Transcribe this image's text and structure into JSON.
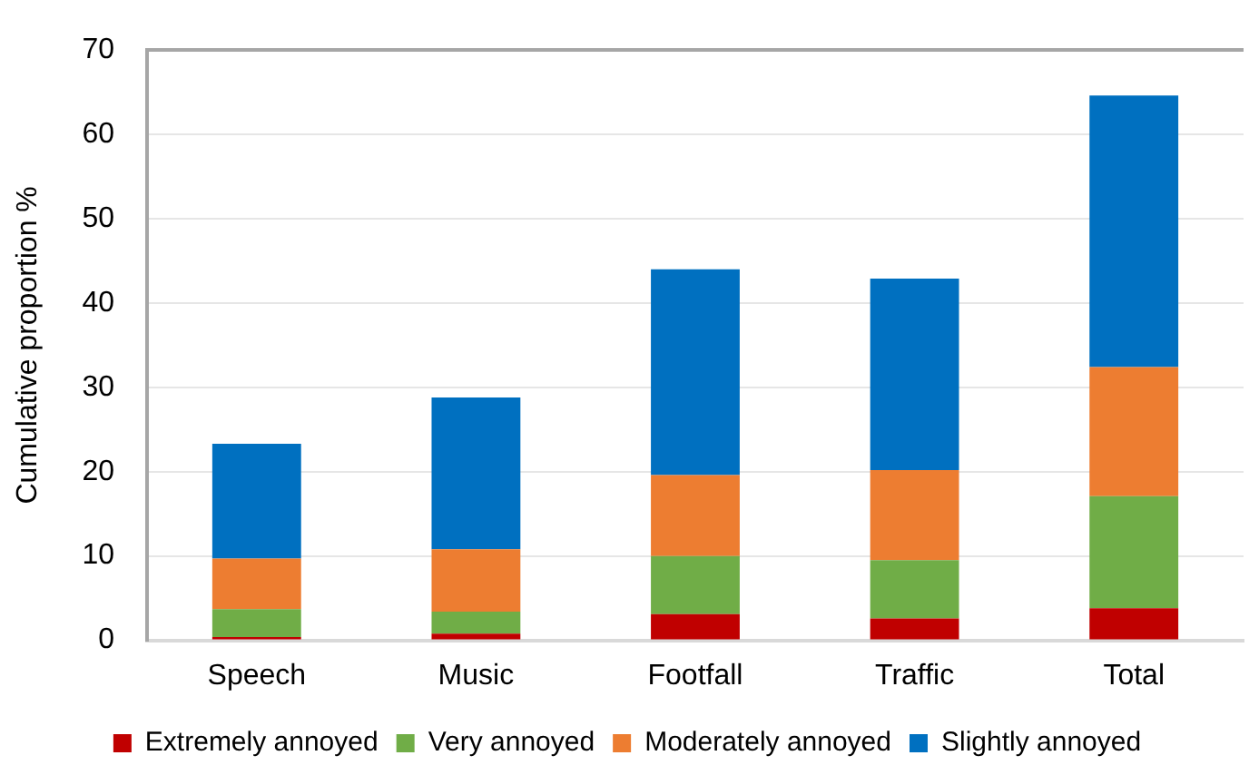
{
  "chart_data": {
    "type": "bar",
    "stacked": true,
    "ylabel": "Cumulative proportion %",
    "categories": [
      "Speech",
      "Music",
      "Footfall",
      "Traffic",
      "Total"
    ],
    "series": [
      {
        "name": "Extremely annoyed",
        "color": "#c00000",
        "values": [
          0.4,
          0.8,
          3.1,
          2.6,
          3.8
        ]
      },
      {
        "name": "Very annoyed",
        "color": "#70ad47",
        "values": [
          3.3,
          2.6,
          6.9,
          6.9,
          13.3
        ]
      },
      {
        "name": "Moderately annoyed",
        "color": "#ed7d31",
        "values": [
          6.0,
          7.4,
          9.6,
          10.7,
          15.3
        ]
      },
      {
        "name": "Slightly annoyed",
        "color": "#0070c0",
        "values": [
          13.6,
          18.0,
          24.4,
          22.7,
          32.2
        ]
      }
    ],
    "ylim": [
      0,
      70
    ],
    "yticks": [
      0,
      10,
      20,
      30,
      40,
      50,
      60,
      70
    ],
    "grid": "y",
    "legend": "bottom"
  }
}
